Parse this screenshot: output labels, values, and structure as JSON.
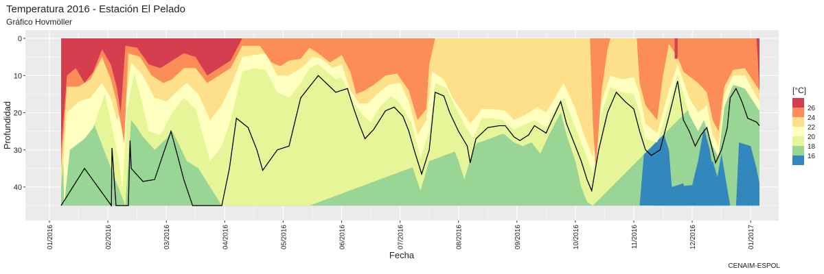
{
  "chart_data": {
    "type": "heatmap",
    "title": "Temperatura 2016 - Estación El Pelado",
    "subtitle": "Gráfico Hovmöller",
    "xlabel": "Fecha",
    "ylabel": "Profundidad",
    "caption": "CENAIM-ESPOL",
    "x_ticks": [
      "01/2016",
      "02/2016",
      "03/2016",
      "04/2016",
      "05/2016",
      "06/2016",
      "07/2016",
      "08/2016",
      "09/2016",
      "10/2016",
      "11/2016",
      "12/2016",
      "01/2017"
    ],
    "y_ticks": [
      0,
      10,
      20,
      30,
      40
    ],
    "y_reversed": true,
    "ylim": [
      0,
      46
    ],
    "grid": true,
    "legend": {
      "title": "[°C]",
      "position": "right",
      "labels": [
        "26",
        "24",
        "22",
        "20",
        "18",
        "16"
      ]
    },
    "bands": [
      {
        "min_temp": 26,
        "color": "#d53e4f"
      },
      {
        "min_temp": 24,
        "color": "#fc8d59"
      },
      {
        "min_temp": 22,
        "color": "#fee08b"
      },
      {
        "min_temp": 20,
        "color": "#ffffbf"
      },
      {
        "min_temp": 19,
        "color": "#e6f598"
      },
      {
        "min_temp": 18,
        "color": "#99d594"
      },
      {
        "min_temp": 0,
        "color": "#3288bd"
      }
    ],
    "isotherm": {
      "temp": 20,
      "points": [
        [
          0.2,
          45
        ],
        [
          0.6,
          35
        ],
        [
          1.06,
          45
        ],
        [
          1.07,
          29.5
        ],
        [
          1.14,
          45
        ],
        [
          1.35,
          45
        ],
        [
          1.38,
          27.5
        ],
        [
          1.4,
          35
        ],
        [
          1.6,
          38.5
        ],
        [
          1.8,
          38
        ],
        [
          1.95,
          31
        ],
        [
          2.08,
          25
        ],
        [
          2.2,
          32
        ],
        [
          2.3,
          38
        ],
        [
          2.45,
          45
        ],
        [
          2.95,
          45
        ],
        [
          3.08,
          35
        ],
        [
          3.2,
          21.5
        ],
        [
          3.4,
          24
        ],
        [
          3.55,
          30
        ],
        [
          3.65,
          35.5
        ],
        [
          3.9,
          30
        ],
        [
          4.1,
          29
        ],
        [
          4.3,
          16
        ],
        [
          4.6,
          10
        ],
        [
          4.9,
          14.5
        ],
        [
          5.1,
          13.5
        ],
        [
          5.2,
          18.5
        ],
        [
          5.3,
          23
        ],
        [
          5.4,
          27
        ],
        [
          5.55,
          24.5
        ],
        [
          5.75,
          19.5
        ],
        [
          5.9,
          18.5
        ],
        [
          6.05,
          21
        ],
        [
          6.15,
          25
        ],
        [
          6.25,
          30.5
        ],
        [
          6.37,
          36.5
        ],
        [
          6.5,
          30
        ],
        [
          6.6,
          14.5
        ],
        [
          6.75,
          15.5
        ],
        [
          6.85,
          20
        ],
        [
          7.0,
          25
        ],
        [
          7.15,
          29
        ],
        [
          7.2,
          33.5
        ],
        [
          7.3,
          27
        ],
        [
          7.5,
          24
        ],
        [
          7.7,
          23.5
        ],
        [
          7.8,
          23.5
        ],
        [
          7.95,
          26.5
        ],
        [
          8.05,
          27.5
        ],
        [
          8.2,
          26
        ],
        [
          8.3,
          23.5
        ],
        [
          8.5,
          25.5
        ],
        [
          8.6,
          22
        ],
        [
          8.75,
          17
        ],
        [
          8.85,
          23
        ],
        [
          9.0,
          29
        ],
        [
          9.1,
          33
        ],
        [
          9.2,
          38
        ],
        [
          9.28,
          41
        ],
        [
          9.4,
          30
        ],
        [
          9.55,
          20
        ],
        [
          9.7,
          14.5
        ],
        [
          9.85,
          17
        ],
        [
          10.0,
          19
        ],
        [
          10.1,
          25
        ],
        [
          10.2,
          30
        ],
        [
          10.3,
          31.5
        ],
        [
          10.45,
          30
        ],
        [
          10.6,
          21
        ],
        [
          10.75,
          11.5
        ],
        [
          10.85,
          22
        ],
        [
          10.95,
          25
        ],
        [
          11.05,
          29
        ],
        [
          11.15,
          26
        ],
        [
          11.25,
          24
        ],
        [
          11.4,
          33.5
        ],
        [
          11.5,
          30
        ],
        [
          11.6,
          24
        ],
        [
          11.65,
          16
        ],
        [
          11.75,
          13.5
        ],
        [
          11.85,
          17
        ],
        [
          11.95,
          21.5
        ],
        [
          12.1,
          22.5
        ],
        [
          12.15,
          23.5
        ]
      ]
    }
  }
}
